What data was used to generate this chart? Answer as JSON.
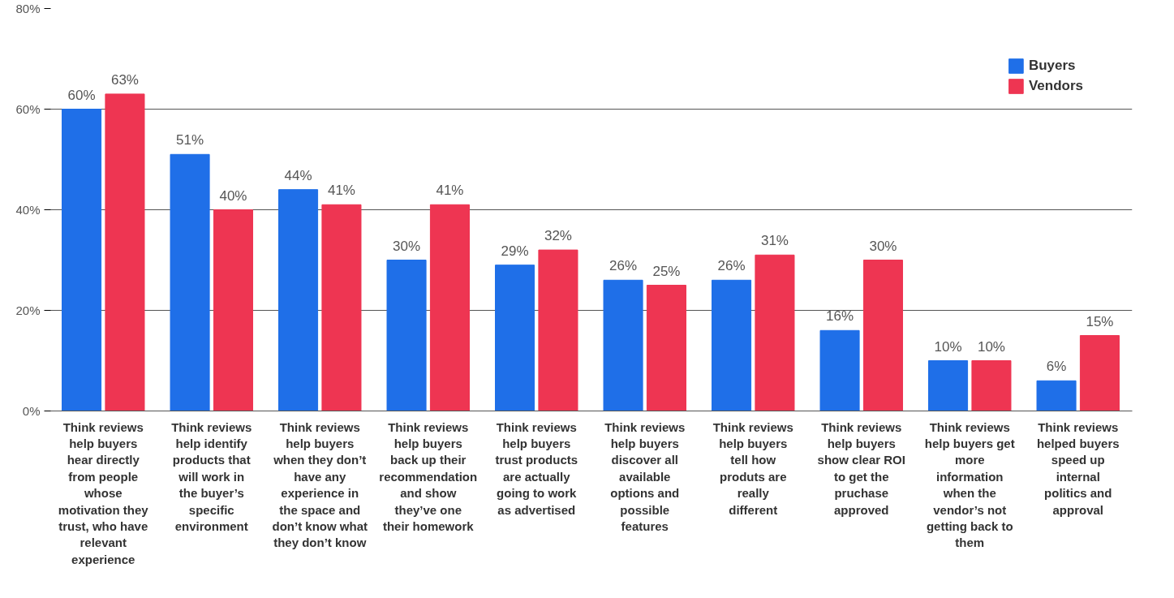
{
  "chart_data": {
    "type": "bar",
    "categories": [
      "Think reviews help buyers hear directly from people whose motivation they trust, who have relevant experience",
      "Think reviews help identify products that will work in the buyer’s specific environment",
      "Think reviews help buyers when they don’t have any experience in the space and don’t know what they don’t know",
      "Think reviews help buyers back up their recommendation and show they’ve one their homework",
      "Think reviews help buyers trust products are actually going to work as advertised",
      "Think reviews help buyers discover all available options and possible features",
      "Think reviews help buyers tell how produts are really different",
      "Think reviews help buyers show clear ROI to get the pruchase approved",
      "Think reviews help buyers get more information when the vendor’s not getting back to them",
      "Think reviews helped buyers speed up internal politics and approval"
    ],
    "series": [
      {
        "name": "Buyers",
        "color": "#1f6fe8",
        "values": [
          60,
          51,
          44,
          30,
          29,
          26,
          26,
          16,
          10,
          6
        ],
        "value_labels": [
          "60%",
          "51%",
          "44%",
          "30%",
          "29%",
          "26%",
          "26%",
          "16%",
          "10%",
          "6%"
        ]
      },
      {
        "name": "Vendors",
        "color": "#ee3552",
        "values": [
          63,
          40,
          41,
          41,
          32,
          25,
          31,
          30,
          10,
          15
        ],
        "value_labels": [
          "63%",
          "40%",
          "41%",
          "41%",
          "32%",
          "25%",
          "31%",
          "30%",
          "10%",
          "15%"
        ]
      }
    ],
    "ylim": [
      0,
      80
    ],
    "yticks": [
      {
        "value": 0,
        "label": "0%"
      },
      {
        "value": 20,
        "label": "20%"
      },
      {
        "value": 40,
        "label": "40%"
      },
      {
        "value": 60,
        "label": "60%"
      },
      {
        "value": 80,
        "label": "80%"
      }
    ],
    "grid": "y",
    "legend": "top right"
  }
}
